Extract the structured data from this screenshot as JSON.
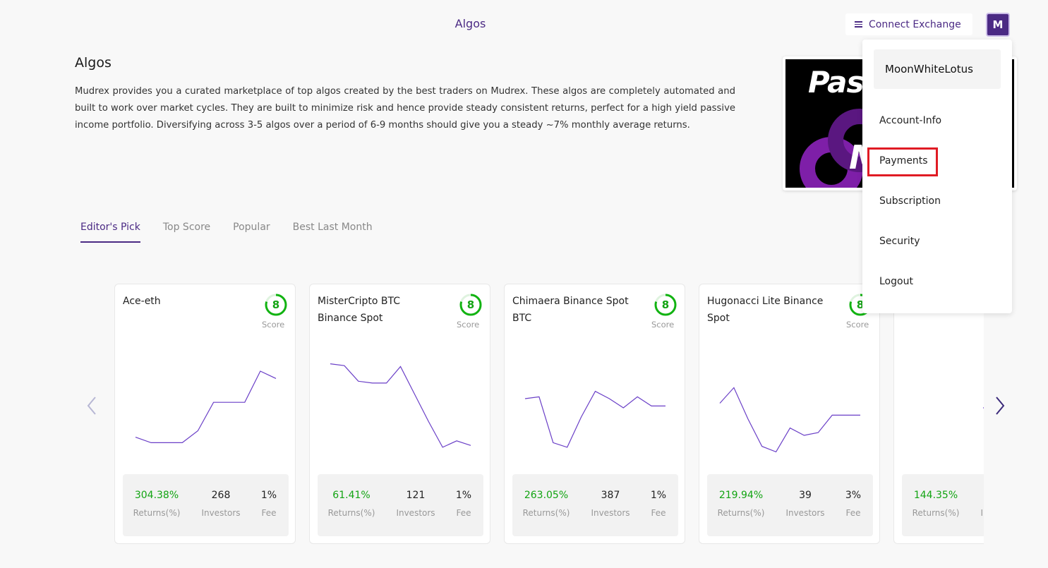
{
  "header": {
    "title": "Algos",
    "connect_label": "Connect Exchange",
    "avatar_initial": "M"
  },
  "intro": {
    "heading": "Algos",
    "description": "Mudrex provides you a curated marketplace of top algos created by the best traders on Mudrex. These algos are completely automated and built to work over market cycles. They are built to minimize risk and hence provide steady consistent returns, perfect for a high yield passive income portfolio. Diversifying across 3-5 algos over a period of 6-9 months should give you a steady ~7% monthly average returns."
  },
  "banner": {
    "text_top": "Pass",
    "text_bottom": "M"
  },
  "tabs": [
    {
      "label": "Editor's Pick",
      "active": true
    },
    {
      "label": "Top Score",
      "active": false
    },
    {
      "label": "Popular",
      "active": false
    },
    {
      "label": "Best Last Month",
      "active": false
    }
  ],
  "score_label": "Score",
  "stat_labels": {
    "returns": "Returns(%)",
    "investors": "Investors",
    "fee": "Fee"
  },
  "cards": [
    {
      "name": "Ace-eth",
      "score": "8",
      "returns": "304.38%",
      "investors": "268",
      "fee": "1%",
      "trend": [
        0.18,
        0.12,
        0.12,
        0.12,
        0.25,
        0.56,
        0.56,
        0.56,
        0.9,
        0.82
      ]
    },
    {
      "name": "MisterCripto BTC Binance Spot",
      "score": "8",
      "returns": "61.41%",
      "investors": "121",
      "fee": "1%",
      "trend": [
        0.98,
        0.96,
        0.79,
        0.77,
        0.77,
        0.95,
        0.65,
        0.35,
        0.07,
        0.14,
        0.09
      ]
    },
    {
      "name": "Chimaera Binance Spot BTC",
      "score": "8",
      "returns": "263.05%",
      "investors": "387",
      "fee": "1%",
      "trend": [
        0.6,
        0.62,
        0.12,
        0.07,
        0.4,
        0.68,
        0.6,
        0.5,
        0.62,
        0.52,
        0.52
      ]
    },
    {
      "name": "Hugonacci Lite Binance Spot",
      "score": "8",
      "returns": "219.94%",
      "investors": "39",
      "fee": "3%",
      "trend": [
        0.55,
        0.72,
        0.38,
        0.08,
        0.02,
        0.28,
        0.2,
        0.23,
        0.42,
        0.42,
        0.42
      ]
    },
    {
      "name": "",
      "score": "",
      "returns": "144.35%",
      "investors": "",
      "fee": "",
      "trend": [
        0.5,
        0.5
      ]
    }
  ],
  "menu": {
    "username": "MoonWhiteLotus",
    "items": [
      "Account-Info",
      "Payments",
      "Subscription",
      "Security",
      "Logout"
    ]
  },
  "colors": {
    "brand": "#4b2a84",
    "positive": "#12a412",
    "highlight": "#e01b24",
    "line": "#6a3fc7"
  }
}
